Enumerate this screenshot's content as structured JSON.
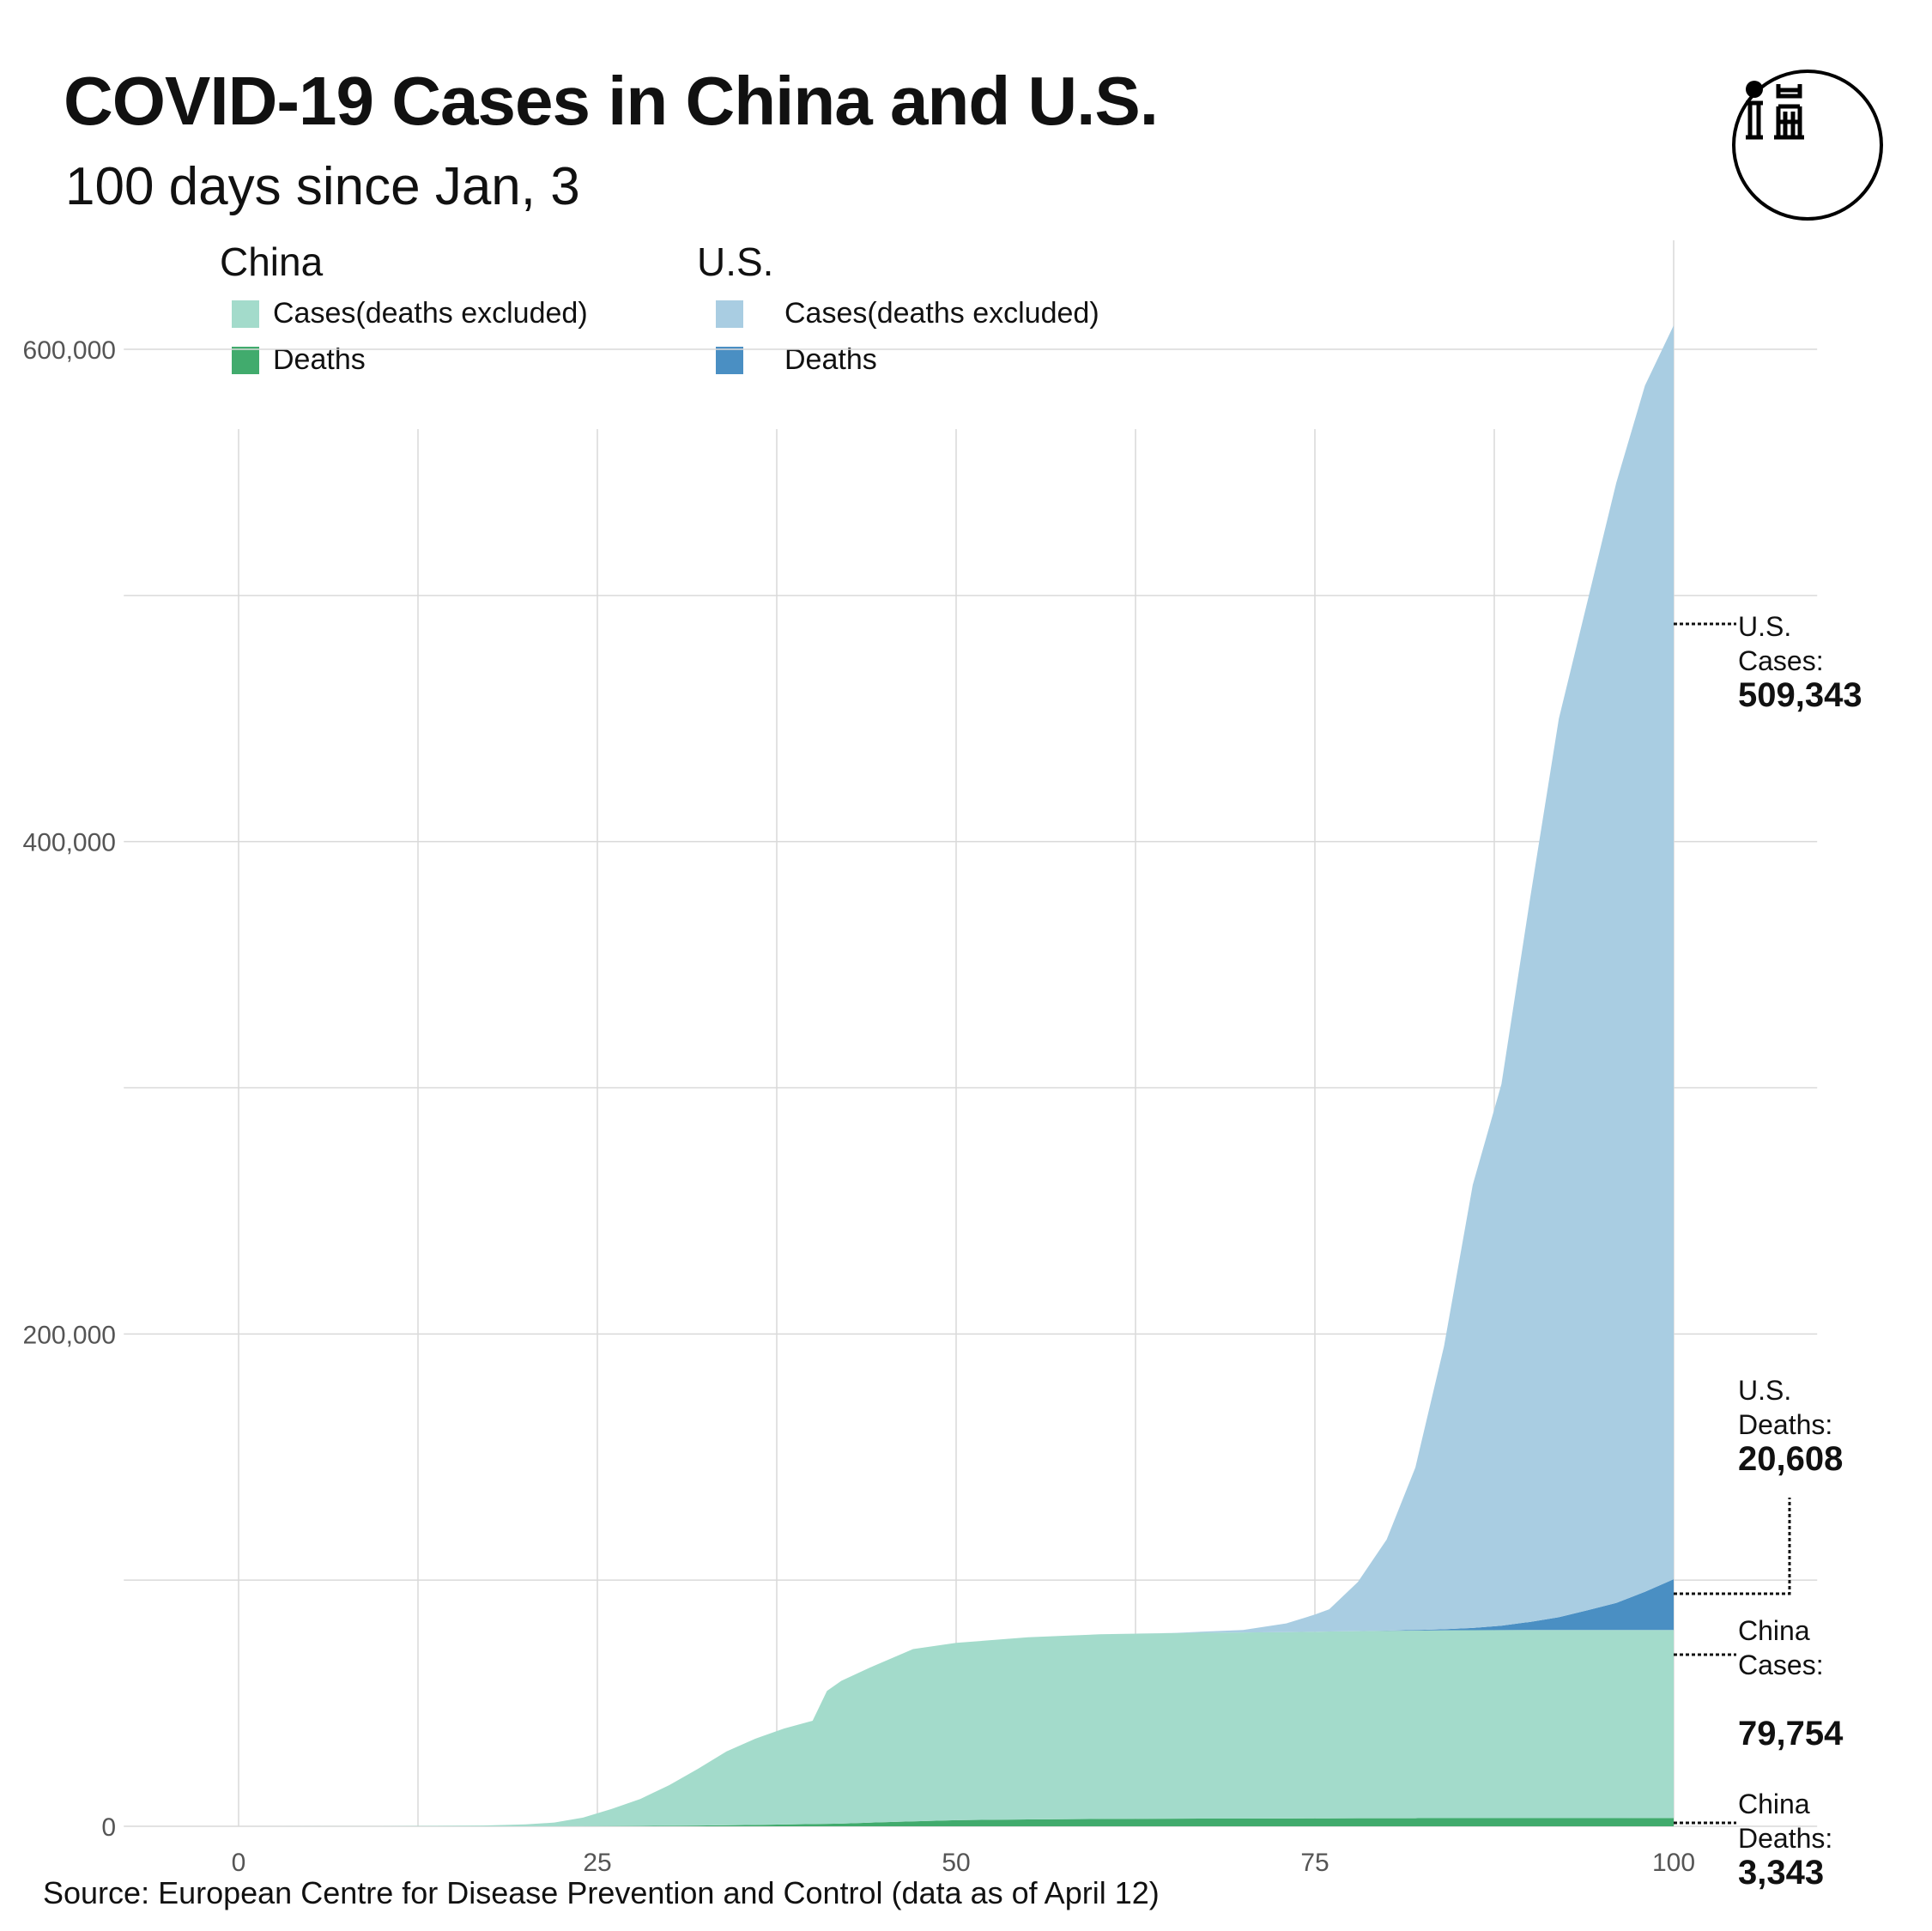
{
  "header": {
    "title": "COVID-19 Cases in China and U.S.",
    "subtitle": "100 days since Jan, 3"
  },
  "legend": {
    "china": {
      "title": "China",
      "cases_label": "Cases(deaths excluded)",
      "deaths_label": "Deaths"
    },
    "us": {
      "title": "U.S.",
      "cases_label": "Cases(deaths excluded)",
      "deaths_label": "Deaths"
    }
  },
  "callouts": {
    "us_cases": {
      "line1": "U.S.",
      "line2": "Cases:",
      "value": "509,343"
    },
    "us_deaths": {
      "line1": "U.S.",
      "line2": "Deaths:",
      "value": "20,608"
    },
    "china_cases": {
      "line1": "China",
      "line2": "Cases:",
      "value": "79,754"
    },
    "china_deaths": {
      "line1": "China",
      "line2": "Deaths:",
      "value": "3,343"
    }
  },
  "source": "Source: European Centre for Disease Prevention and Control (data as of April 12)",
  "colors": {
    "china_cases": "#a3dbcb",
    "china_deaths": "#41ab6d",
    "us_cases": "#a9cde2",
    "us_deaths": "#4a8fc3",
    "grid": "#d9d9d9"
  },
  "chart_data": {
    "type": "area",
    "stacked": true,
    "xlim": [
      -8,
      110
    ],
    "ylim": [
      0,
      620000
    ],
    "x_ticks": [
      0,
      25,
      50,
      75,
      100
    ],
    "x_tick_labels": [
      "0",
      "25",
      "50",
      "75",
      "100"
    ],
    "y_ticks": [
      0,
      200000,
      400000,
      600000
    ],
    "y_tick_labels": [
      "0",
      "200,000",
      "400,000",
      "600,000"
    ],
    "x": [
      -3,
      0,
      10,
      17,
      20,
      22,
      24,
      26,
      28,
      30,
      32,
      34,
      36,
      38,
      40,
      41,
      42,
      44,
      47,
      50,
      55,
      60,
      65,
      70,
      73,
      75,
      76,
      78,
      80,
      82,
      84,
      86,
      88,
      90,
      92,
      94,
      96,
      98,
      100
    ],
    "series": [
      {
        "name": "Deaths",
        "group": "China",
        "values": [
          0,
          0,
          0,
          0,
          0,
          10,
          40,
          80,
          130,
          200,
          300,
          420,
          560,
          720,
          900,
          1000,
          1100,
          1500,
          2000,
          2500,
          2800,
          3000,
          3100,
          3150,
          3200,
          3220,
          3240,
          3260,
          3280,
          3290,
          3300,
          3310,
          3310,
          3320,
          3320,
          3330,
          3330,
          3340,
          3343
        ]
      },
      {
        "name": "Cases(deaths excluded)",
        "group": "China",
        "values": [
          0,
          0,
          40,
          300,
          800,
          1500,
          3500,
          7000,
          11000,
          16500,
          23000,
          30000,
          35000,
          39000,
          42000,
          54000,
          58000,
          63000,
          70000,
          72000,
          74000,
          75000,
          75400,
          75600,
          75700,
          75800,
          75900,
          76000,
          76100,
          76200,
          76300,
          76350,
          76400,
          76420,
          76430,
          76430,
          76420,
          76415,
          76411
        ]
      },
      {
        "name": "Deaths",
        "group": "U.S.",
        "values": [
          0,
          0,
          0,
          0,
          0,
          0,
          0,
          0,
          0,
          0,
          0,
          0,
          0,
          0,
          0,
          0,
          0,
          0,
          0,
          0,
          0,
          0,
          0,
          0,
          0,
          0,
          0,
          0,
          100,
          250,
          450,
          900,
          1800,
          3300,
          5200,
          8000,
          11000,
          15500,
          20608
        ]
      },
      {
        "name": "Cases(deaths excluded)",
        "group": "U.S.",
        "values": [
          0,
          0,
          0,
          0,
          0,
          0,
          0,
          0,
          0,
          0,
          0,
          0,
          0,
          0,
          0,
          0,
          0,
          0,
          0,
          0,
          0,
          0,
          30,
          1000,
          3500,
          7000,
          9000,
          20000,
          37000,
          66000,
          115000,
          180000,
          220000,
          294000,
          365000,
          410000,
          455000,
          490000,
          509343
        ]
      }
    ]
  }
}
